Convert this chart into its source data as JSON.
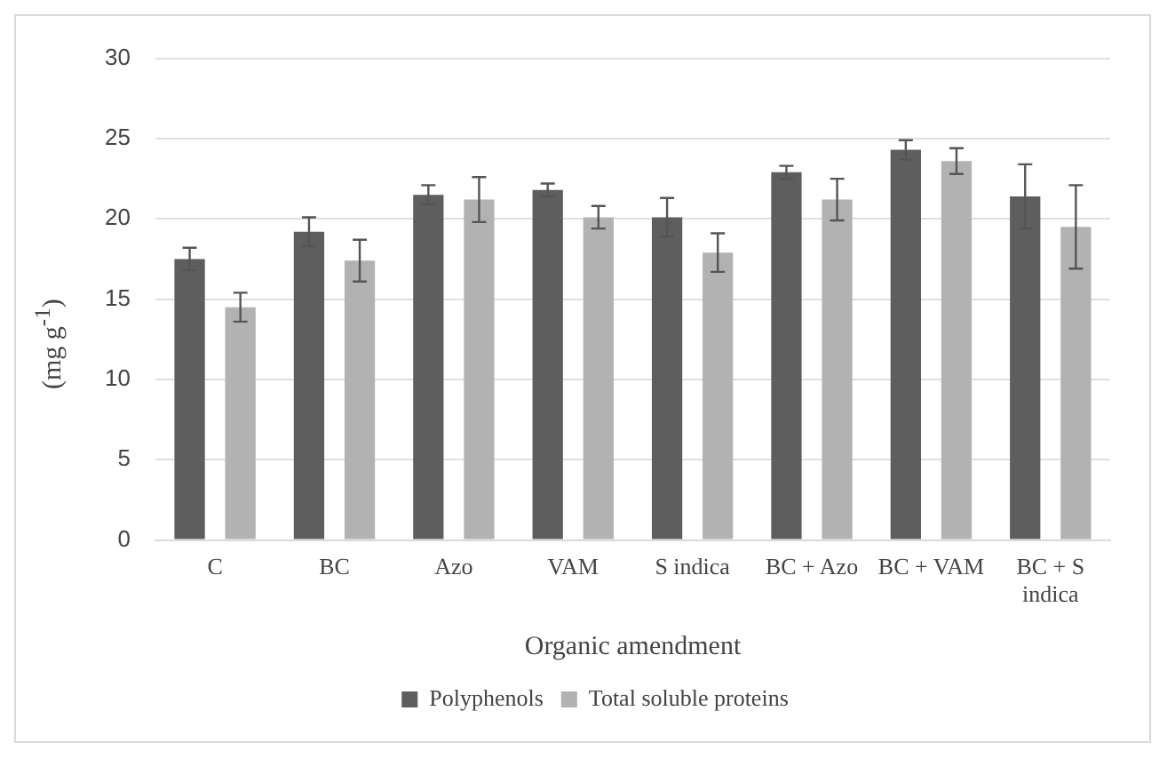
{
  "chart_data": {
    "type": "bar",
    "xlabel": "Organic amendment",
    "ylabel": "(mg g$^{-1}$)",
    "categories": [
      "C",
      "BC",
      "Azo",
      "VAM",
      "S indica",
      "BC + Azo",
      "BC + VAM",
      "BC + S indica"
    ],
    "series": [
      {
        "name": "Polyphenols",
        "color": "#5e5e5e",
        "values": [
          17.5,
          19.2,
          21.5,
          21.8,
          20.1,
          22.9,
          24.3,
          21.4
        ],
        "errors": [
          0.7,
          0.9,
          0.6,
          0.4,
          1.2,
          0.4,
          0.6,
          2.0
        ]
      },
      {
        "name": "Total soluble proteins",
        "color": "#b2b2b2",
        "values": [
          14.5,
          17.4,
          21.2,
          20.1,
          17.9,
          21.2,
          23.6,
          19.5
        ],
        "errors": [
          0.9,
          1.3,
          1.4,
          0.7,
          1.2,
          1.3,
          0.8,
          2.6
        ]
      }
    ],
    "ylim": [
      0,
      30
    ],
    "yticks": [
      0,
      5,
      10,
      15,
      20,
      25,
      30
    ],
    "grid": "y",
    "legend": "bottom"
  }
}
